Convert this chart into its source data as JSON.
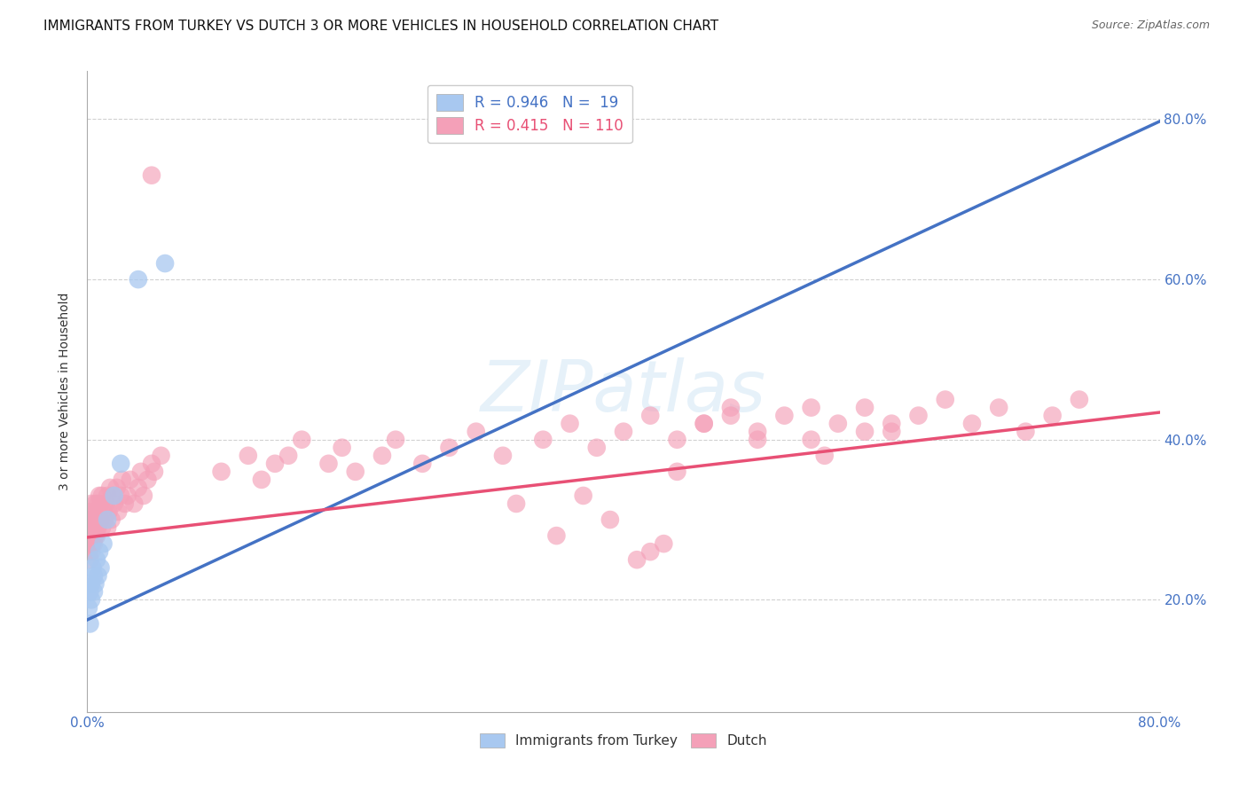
{
  "title": "IMMIGRANTS FROM TURKEY VS DUTCH 3 OR MORE VEHICLES IN HOUSEHOLD CORRELATION CHART",
  "source": "Source: ZipAtlas.com",
  "ylabel": "3 or more Vehicles in Household",
  "xlabel_blue": "Immigrants from Turkey",
  "xlabel_pink": "Dutch",
  "r_blue": 0.946,
  "n_blue": 19,
  "r_pink": 0.415,
  "n_pink": 110,
  "xmin": 0.0,
  "xmax": 0.8,
  "ymin": 0.06,
  "ymax": 0.86,
  "yticks": [
    0.2,
    0.4,
    0.6,
    0.8
  ],
  "ytick_labels": [
    "20.0%",
    "40.0%",
    "60.0%",
    "80.0%"
  ],
  "xticks": [
    0.0,
    0.8
  ],
  "xtick_labels": [
    "0.0%",
    "80.0%"
  ],
  "grid_color": "#cccccc",
  "background_color": "#ffffff",
  "blue_color": "#A8C8F0",
  "pink_color": "#F4A0B8",
  "blue_line_color": "#4472C4",
  "pink_line_color": "#E85075",
  "watermark_text": "ZIPatlas",
  "blue_intercept": 0.175,
  "blue_slope": 0.778,
  "pink_intercept": 0.278,
  "pink_slope": 0.195,
  "blue_x": [
    0.001,
    0.002,
    0.002,
    0.003,
    0.003,
    0.004,
    0.005,
    0.005,
    0.006,
    0.007,
    0.008,
    0.009,
    0.01,
    0.012,
    0.015,
    0.02,
    0.025,
    0.038,
    0.058
  ],
  "blue_y": [
    0.19,
    0.17,
    0.21,
    0.2,
    0.22,
    0.24,
    0.21,
    0.23,
    0.22,
    0.25,
    0.23,
    0.26,
    0.24,
    0.27,
    0.3,
    0.33,
    0.37,
    0.6,
    0.62
  ],
  "pink_x": [
    0.001,
    0.001,
    0.001,
    0.002,
    0.002,
    0.002,
    0.002,
    0.003,
    0.003,
    0.003,
    0.003,
    0.004,
    0.004,
    0.004,
    0.005,
    0.005,
    0.005,
    0.005,
    0.006,
    0.006,
    0.006,
    0.007,
    0.007,
    0.007,
    0.008,
    0.008,
    0.008,
    0.009,
    0.009,
    0.01,
    0.01,
    0.011,
    0.011,
    0.012,
    0.013,
    0.014,
    0.015,
    0.015,
    0.016,
    0.017,
    0.018,
    0.019,
    0.02,
    0.022,
    0.023,
    0.025,
    0.026,
    0.028,
    0.03,
    0.032,
    0.035,
    0.038,
    0.04,
    0.042,
    0.045,
    0.048,
    0.05,
    0.055,
    0.048,
    0.1,
    0.12,
    0.13,
    0.14,
    0.15,
    0.16,
    0.18,
    0.19,
    0.2,
    0.22,
    0.23,
    0.25,
    0.27,
    0.29,
    0.31,
    0.34,
    0.36,
    0.38,
    0.4,
    0.42,
    0.44,
    0.46,
    0.48,
    0.5,
    0.52,
    0.54,
    0.56,
    0.58,
    0.6,
    0.62,
    0.64,
    0.66,
    0.68,
    0.7,
    0.72,
    0.74,
    0.6,
    0.54,
    0.58,
    0.48,
    0.46,
    0.5,
    0.55,
    0.44,
    0.43,
    0.42,
    0.41,
    0.39,
    0.37,
    0.35,
    0.32
  ],
  "pink_y": [
    0.28,
    0.26,
    0.3,
    0.27,
    0.29,
    0.25,
    0.31,
    0.27,
    0.3,
    0.26,
    0.32,
    0.28,
    0.3,
    0.27,
    0.28,
    0.3,
    0.27,
    0.29,
    0.28,
    0.3,
    0.32,
    0.29,
    0.31,
    0.28,
    0.3,
    0.32,
    0.29,
    0.31,
    0.33,
    0.3,
    0.32,
    0.29,
    0.33,
    0.31,
    0.3,
    0.32,
    0.29,
    0.33,
    0.31,
    0.34,
    0.3,
    0.33,
    0.32,
    0.34,
    0.31,
    0.33,
    0.35,
    0.32,
    0.33,
    0.35,
    0.32,
    0.34,
    0.36,
    0.33,
    0.35,
    0.37,
    0.36,
    0.38,
    0.73,
    0.36,
    0.38,
    0.35,
    0.37,
    0.38,
    0.4,
    0.37,
    0.39,
    0.36,
    0.38,
    0.4,
    0.37,
    0.39,
    0.41,
    0.38,
    0.4,
    0.42,
    0.39,
    0.41,
    0.43,
    0.4,
    0.42,
    0.44,
    0.41,
    0.43,
    0.4,
    0.42,
    0.44,
    0.41,
    0.43,
    0.45,
    0.42,
    0.44,
    0.41,
    0.43,
    0.45,
    0.42,
    0.44,
    0.41,
    0.43,
    0.42,
    0.4,
    0.38,
    0.36,
    0.27,
    0.26,
    0.25,
    0.3,
    0.33,
    0.28,
    0.32
  ],
  "title_fontsize": 11,
  "axis_label_fontsize": 10,
  "tick_fontsize": 11,
  "legend_fontsize": 12
}
